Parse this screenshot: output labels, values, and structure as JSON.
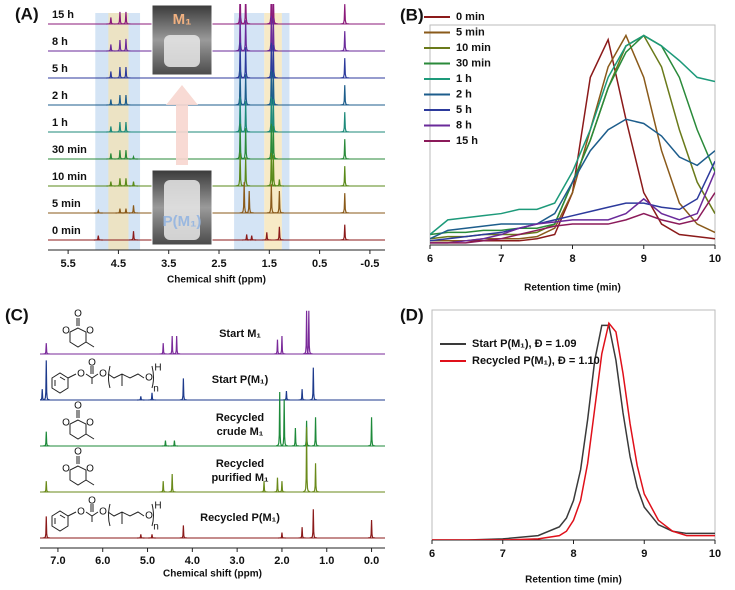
{
  "chart_data": [
    {
      "type": "nmr-stack",
      "panel": "(A)",
      "xlabel": "Chemical shift (ppm)",
      "xlim": [
        5.9,
        -0.8
      ],
      "xticks": [
        5.5,
        4.5,
        3.5,
        2.5,
        1.5,
        0.5,
        -0.5
      ],
      "insets": [
        "M₁",
        "P(M₁)"
      ],
      "highlights": [
        {
          "from": 4.96,
          "to": 4.07,
          "color": "#c6dbf1"
        },
        {
          "from": 4.7,
          "to": 4.3,
          "color": "#f4e3b3"
        },
        {
          "from": 2.2,
          "to": 1.6,
          "color": "#c6dbf1"
        },
        {
          "from": 1.6,
          "to": 1.25,
          "color": "#f4e3b3"
        },
        {
          "from": 1.25,
          "to": 1.1,
          "color": "#c6dbf1"
        }
      ],
      "series": [
        {
          "name": "15 h",
          "color": "#8b1a7a",
          "peaks_x": [
            4.65,
            4.47,
            4.35,
            2.08,
            1.97,
            1.46,
            1.42,
            0
          ],
          "peaks_y": [
            0.3,
            0.55,
            0.55,
            1.6,
            1.4,
            1.6,
            1.5,
            0.9
          ]
        },
        {
          "name": "8 h",
          "color": "#6a2a9a",
          "peaks_x": [
            4.65,
            4.47,
            4.35,
            2.08,
            1.97,
            1.46,
            1.42,
            0
          ],
          "peaks_y": [
            0.3,
            0.5,
            0.55,
            1.6,
            1.4,
            1.6,
            1.5,
            0.9
          ]
        },
        {
          "name": "5 h",
          "color": "#2c3a9c",
          "peaks_x": [
            4.65,
            4.47,
            4.35,
            2.08,
            1.97,
            1.46,
            1.42,
            0
          ],
          "peaks_y": [
            0.3,
            0.5,
            0.5,
            1.6,
            1.4,
            1.6,
            1.5,
            0.9
          ]
        },
        {
          "name": "2 h",
          "color": "#1d5d8c",
          "peaks_x": [
            4.65,
            4.47,
            4.35,
            2.08,
            1.97,
            1.46,
            1.42,
            0
          ],
          "peaks_y": [
            0.25,
            0.45,
            0.45,
            1.6,
            1.4,
            1.6,
            1.5,
            0.9
          ]
        },
        {
          "name": "1 h",
          "color": "#1d8a7a",
          "peaks_x": [
            4.65,
            4.47,
            4.35,
            2.08,
            1.97,
            1.46,
            1.42,
            0
          ],
          "peaks_y": [
            0.25,
            0.45,
            0.45,
            1.6,
            1.4,
            1.6,
            1.5,
            0.9
          ]
        },
        {
          "name": "30 min",
          "color": "#2a8a3a",
          "peaks_x": [
            4.65,
            4.47,
            4.35,
            4.2,
            2.08,
            1.97,
            1.46,
            1.42,
            0
          ],
          "peaks_y": [
            0.25,
            0.4,
            0.4,
            0.1,
            1.6,
            1.4,
            1.6,
            1.5,
            0.9
          ]
        },
        {
          "name": "10 min",
          "color": "#5a8a1a",
          "peaks_x": [
            4.65,
            4.47,
            4.35,
            4.2,
            2.08,
            1.97,
            1.46,
            1.42,
            1.3,
            0
          ],
          "peaks_y": [
            0.2,
            0.35,
            0.35,
            0.2,
            1.5,
            1.3,
            1.5,
            1.4,
            0.3,
            0.9
          ]
        },
        {
          "name": "5 min",
          "color": "#8a5a1a",
          "peaks_x": [
            4.9,
            4.47,
            4.35,
            4.2,
            2.0,
            1.9,
            1.46,
            1.3,
            0
          ],
          "peaks_y": [
            0.1,
            0.2,
            0.2,
            0.35,
            1.4,
            1.0,
            1.3,
            1.0,
            0.9
          ]
        },
        {
          "name": "0 min",
          "color": "#8b1a1a",
          "peaks_x": [
            4.9,
            4.2,
            1.95,
            1.85,
            1.55,
            1.3,
            0
          ],
          "peaks_y": [
            0.2,
            0.4,
            0.25,
            0.2,
            0.35,
            0.6,
            0.7
          ]
        }
      ]
    },
    {
      "type": "line",
      "panel": "(B)",
      "xlabel": "Retention time (min)",
      "xlim": [
        6,
        10
      ],
      "xticks": [
        6,
        7,
        8,
        9,
        10
      ],
      "ylim": [
        0,
        1.05
      ],
      "legend": "upper left",
      "x": [
        6,
        6.25,
        6.5,
        6.75,
        7,
        7.25,
        7.5,
        7.75,
        8,
        8.25,
        8.5,
        8.75,
        9,
        9.25,
        9.5,
        9.75,
        10
      ],
      "series": [
        {
          "name": "0 min",
          "color": "#8b1a1a",
          "values": [
            0.02,
            0.02,
            0.02,
            0.02,
            0.02,
            0.02,
            0.03,
            0.05,
            0.25,
            0.8,
            0.98,
            0.6,
            0.25,
            0.1,
            0.05,
            0.04,
            0.03
          ]
        },
        {
          "name": "5 min",
          "color": "#8a5a1a",
          "values": [
            0.02,
            0.02,
            0.02,
            0.03,
            0.03,
            0.03,
            0.04,
            0.08,
            0.25,
            0.55,
            0.85,
            1.0,
            0.8,
            0.45,
            0.2,
            0.1,
            0.06
          ]
        },
        {
          "name": "10 min",
          "color": "#6a7a1a",
          "values": [
            0.03,
            0.04,
            0.04,
            0.05,
            0.05,
            0.05,
            0.06,
            0.1,
            0.3,
            0.5,
            0.75,
            0.95,
            1.0,
            0.85,
            0.55,
            0.3,
            0.15
          ]
        },
        {
          "name": "30 min",
          "color": "#2a8a3a",
          "values": [
            0.05,
            0.06,
            0.06,
            0.07,
            0.07,
            0.08,
            0.08,
            0.1,
            0.3,
            0.5,
            0.75,
            0.92,
            1.0,
            0.95,
            0.8,
            0.55,
            0.35
          ]
        },
        {
          "name": "1 h",
          "color": "#1d9a7a",
          "values": [
            0.05,
            0.12,
            0.13,
            0.14,
            0.15,
            0.17,
            0.17,
            0.2,
            0.35,
            0.55,
            0.8,
            0.95,
            1.0,
            0.95,
            0.88,
            0.8,
            0.78
          ]
        },
        {
          "name": "2 h",
          "color": "#1d5d8c",
          "values": [
            0.03,
            0.07,
            0.08,
            0.09,
            0.1,
            0.1,
            0.1,
            0.15,
            0.3,
            0.45,
            0.55,
            0.6,
            0.58,
            0.52,
            0.42,
            0.38,
            0.45
          ]
        },
        {
          "name": "5 h",
          "color": "#2c3a9c",
          "values": [
            0.02,
            0.03,
            0.04,
            0.05,
            0.06,
            0.08,
            0.1,
            0.12,
            0.14,
            0.16,
            0.18,
            0.2,
            0.2,
            0.18,
            0.17,
            0.22,
            0.4
          ]
        },
        {
          "name": "8 h",
          "color": "#6a2a9a",
          "values": [
            0.01,
            0.01,
            0.02,
            0.03,
            0.05,
            0.08,
            0.1,
            0.11,
            0.12,
            0.12,
            0.12,
            0.15,
            0.22,
            0.15,
            0.12,
            0.15,
            0.35
          ]
        },
        {
          "name": "15 h",
          "color": "#8b1a5a",
          "values": [
            0.01,
            0.01,
            0.01,
            0.02,
            0.03,
            0.05,
            0.07,
            0.09,
            0.1,
            0.1,
            0.1,
            0.12,
            0.15,
            0.12,
            0.1,
            0.12,
            0.25
          ]
        }
      ]
    },
    {
      "type": "nmr-stack",
      "panel": "(C)",
      "xlabel": "Chemical shift (ppm)",
      "xlim": [
        7.4,
        -0.3
      ],
      "xticks": [
        {
          "value": 7,
          "label": "7.0"
        },
        {
          "value": 6,
          "label": "6.0"
        },
        {
          "value": 5,
          "label": "5.0"
        },
        {
          "value": 4,
          "label": "4.0"
        },
        {
          "value": 3,
          "label": "3.0"
        },
        {
          "value": 2,
          "label": "2.0"
        },
        {
          "value": 1,
          "label": "1.0"
        },
        {
          "value": 0,
          "label": "0.0"
        }
      ],
      "structure_text": [
        "O",
        "n",
        "H"
      ],
      "series": [
        {
          "name": [
            "Start M₁"
          ],
          "structure": "monomer",
          "color": "#7a2a9a",
          "peaks_x": [
            7.26,
            4.65,
            4.45,
            4.35,
            2.1,
            2.0,
            1.45,
            1.4
          ],
          "peaks_y": [
            0.3,
            0.3,
            0.5,
            0.5,
            0.4,
            0.5,
            1.2,
            1.2
          ]
        },
        {
          "name": [
            "Start P(M₁)"
          ],
          "structure": "polymer",
          "color": "#1d3a8c",
          "peaks_x": [
            7.35,
            7.26,
            5.15,
            4.9,
            4.2,
            1.9,
            1.55,
            1.3
          ],
          "peaks_y": [
            0.3,
            1.1,
            0.1,
            0.2,
            0.6,
            0.25,
            0.3,
            0.9
          ]
        },
        {
          "name": [
            "Recycled",
            "crude M₁"
          ],
          "structure": "monomer",
          "color": "#1d8a3a",
          "peaks_x": [
            7.26,
            4.6,
            4.4,
            2.05,
            1.95,
            1.7,
            1.45,
            1.25,
            0
          ],
          "peaks_y": [
            0.4,
            0.15,
            0.15,
            1.5,
            1.3,
            0.5,
            0.7,
            0.8,
            0.8
          ]
        },
        {
          "name": [
            "Recycled",
            "purified M₁"
          ],
          "structure": "monomer",
          "color": "#6a8a1a",
          "peaks_x": [
            7.26,
            4.65,
            4.45,
            2.4,
            2.1,
            2.0,
            1.45,
            1.25
          ],
          "peaks_y": [
            0.3,
            0.3,
            0.5,
            0.3,
            0.4,
            0.3,
            1.8,
            0.8
          ]
        },
        {
          "name": [
            "Recycled P(M₁)"
          ],
          "structure": "polymer",
          "color": "#8b1a1a",
          "peaks_x": [
            7.26,
            5.15,
            4.9,
            4.2,
            2.0,
            1.55,
            1.3,
            0
          ],
          "peaks_y": [
            0.6,
            0.1,
            0.1,
            0.35,
            0.15,
            0.3,
            0.8,
            0.5
          ]
        }
      ]
    },
    {
      "type": "line",
      "panel": "(D)",
      "xlabel": "Retention time (min)",
      "xlim": [
        6,
        10
      ],
      "xticks": [
        6,
        7,
        8,
        9,
        10
      ],
      "ylim": [
        0,
        1.05
      ],
      "legend": "upper left",
      "x": [
        6,
        6.5,
        7,
        7.5,
        7.8,
        7.9,
        8,
        8.1,
        8.2,
        8.3,
        8.4,
        8.5,
        8.6,
        8.7,
        8.8,
        8.9,
        9,
        9.2,
        9.4,
        9.6,
        9.8,
        10
      ],
      "series": [
        {
          "name": "Start P(M₁), Đ = 1.09",
          "color": "#3a3a3a",
          "values": [
            0,
            0,
            0.005,
            0.02,
            0.06,
            0.1,
            0.18,
            0.32,
            0.55,
            0.82,
            0.98,
            0.98,
            0.82,
            0.58,
            0.38,
            0.24,
            0.15,
            0.07,
            0.04,
            0.03,
            0.03,
            0.03
          ]
        },
        {
          "name": "Recycled P(M₁), Đ = 1.10",
          "color": "#e0101a",
          "values": [
            0,
            0,
            0,
            0.005,
            0.02,
            0.04,
            0.09,
            0.18,
            0.35,
            0.6,
            0.85,
            0.99,
            0.95,
            0.76,
            0.53,
            0.34,
            0.21,
            0.09,
            0.04,
            0.02,
            0.02,
            0.02
          ]
        }
      ]
    }
  ]
}
